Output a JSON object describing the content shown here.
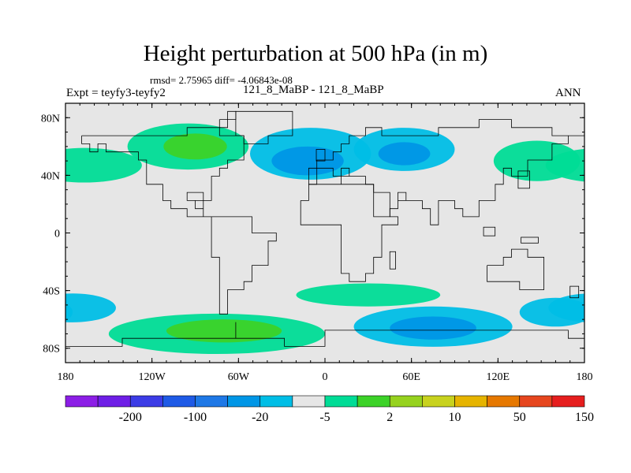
{
  "title": "Height perturbation at 500 hPa (in m)",
  "stats": "rmsd= 2.75965 diff= -4.06843e-08",
  "expt": "Expt = teyfy3-teyfy2",
  "case_id": "121_8_MaBP - 121_8_MaBP",
  "season": "ANN",
  "map": {
    "projection": "cylindrical-equidistant",
    "lon_range": [
      -180,
      180
    ],
    "lat_range": [
      -90,
      90
    ],
    "x_ticks": [
      {
        "value": -180,
        "label": "180"
      },
      {
        "value": -120,
        "label": "120W"
      },
      {
        "value": -60,
        "label": "60W"
      },
      {
        "value": 0,
        "label": "0"
      },
      {
        "value": 60,
        "label": "60E"
      },
      {
        "value": 120,
        "label": "120E"
      },
      {
        "value": 180,
        "label": "180"
      }
    ],
    "y_ticks": [
      {
        "value": 80,
        "label": "80N"
      },
      {
        "value": 40,
        "label": "40N"
      },
      {
        "value": 0,
        "label": "0"
      },
      {
        "value": -40,
        "label": "40S"
      },
      {
        "value": -80,
        "label": "80S"
      }
    ],
    "background_color": "#e6e6e6",
    "anomaly_blobs": [
      {
        "name": "n-atlantic-positive",
        "lon": -167,
        "lat": 47,
        "rlon": 40,
        "rlat": 12,
        "color": "#00dc96"
      },
      {
        "name": "n-pacific-positive",
        "lon": -95,
        "lat": 60,
        "rlon": 42,
        "rlat": 16,
        "color": "#00dc96"
      },
      {
        "name": "n-pacific-core",
        "lon": -90,
        "lat": 60,
        "rlon": 22,
        "rlat": 9,
        "color": "#3cd228"
      },
      {
        "name": "n-america-negative",
        "lon": -10,
        "lat": 55,
        "rlon": 42,
        "rlat": 18,
        "color": "#00bee6"
      },
      {
        "name": "n-america-core",
        "lon": -12,
        "lat": 50,
        "rlon": 25,
        "rlat": 10,
        "color": "#0096e6"
      },
      {
        "name": "eurasia-negative",
        "lon": 55,
        "lat": 58,
        "rlon": 35,
        "rlat": 15,
        "color": "#00bee6"
      },
      {
        "name": "eurasia-core",
        "lon": 55,
        "lat": 55,
        "rlon": 18,
        "rlat": 8,
        "color": "#0096e6"
      },
      {
        "name": "n-siberia-positive",
        "lon": 147,
        "lat": 50,
        "rlon": 30,
        "rlat": 14,
        "color": "#00dc96"
      },
      {
        "name": "s-pacific-negative",
        "lon": -175,
        "lat": -52,
        "rlon": 30,
        "rlat": 10,
        "color": "#00bee6"
      },
      {
        "name": "s-pacific-positive",
        "lon": -75,
        "lat": -70,
        "rlon": 75,
        "rlat": 14,
        "color": "#00dc96"
      },
      {
        "name": "s-pacific-core",
        "lon": -70,
        "lat": -68,
        "rlon": 40,
        "rlat": 8,
        "color": "#3cd228"
      },
      {
        "name": "s-atlantic-positive",
        "lon": 30,
        "lat": -43,
        "rlon": 50,
        "rlat": 8,
        "color": "#00dc96"
      },
      {
        "name": "s-indian-negative",
        "lon": 75,
        "lat": -65,
        "rlon": 55,
        "rlat": 14,
        "color": "#00bee6"
      },
      {
        "name": "s-indian-core",
        "lon": 75,
        "lat": -66,
        "rlon": 30,
        "rlat": 8,
        "color": "#0096e6"
      },
      {
        "name": "s-ocean-east-negative",
        "lon": 160,
        "lat": -55,
        "rlon": 25,
        "rlat": 10,
        "color": "#00bee6"
      }
    ],
    "coastlines": [
      {
        "name": "north-america",
        "points": [
          [
            -168,
            66
          ],
          [
            -158,
            70
          ],
          [
            -140,
            70
          ],
          [
            -128,
            70
          ],
          [
            -115,
            68
          ],
          [
            -96,
            72
          ],
          [
            -80,
            73
          ],
          [
            -68,
            82
          ],
          [
            -60,
            82
          ],
          [
            -62,
            66
          ],
          [
            -55,
            52
          ],
          [
            -65,
            45
          ],
          [
            -75,
            38
          ],
          [
            -81,
            30
          ],
          [
            -80,
            25
          ],
          [
            -85,
            30
          ],
          [
            -90,
            29
          ],
          [
            -97,
            26
          ],
          [
            -97,
            20
          ],
          [
            -92,
            18
          ],
          [
            -87,
            21
          ],
          [
            -88,
            15
          ],
          [
            -82,
            9
          ],
          [
            -79,
            9
          ],
          [
            -85,
            11
          ],
          [
            -93,
            16
          ],
          [
            -105,
            20
          ],
          [
            -110,
            24
          ],
          [
            -115,
            31
          ],
          [
            -122,
            37
          ],
          [
            -124,
            42
          ],
          [
            -124,
            48
          ],
          [
            -132,
            55
          ],
          [
            -150,
            60
          ],
          [
            -160,
            58
          ],
          [
            -165,
            62
          ],
          [
            -168,
            66
          ]
        ]
      },
      {
        "name": "south-america",
        "points": [
          [
            -80,
            9
          ],
          [
            -75,
            11
          ],
          [
            -65,
            11
          ],
          [
            -52,
            5
          ],
          [
            -50,
            0
          ],
          [
            -44,
            -2
          ],
          [
            -35,
            -6
          ],
          [
            -38,
            -13
          ],
          [
            -41,
            -22
          ],
          [
            -48,
            -26
          ],
          [
            -53,
            -34
          ],
          [
            -58,
            -38
          ],
          [
            -65,
            -42
          ],
          [
            -67,
            -50
          ],
          [
            -69,
            -55
          ],
          [
            -75,
            -50
          ],
          [
            -74,
            -42
          ],
          [
            -72,
            -30
          ],
          [
            -71,
            -18
          ],
          [
            -76,
            -12
          ],
          [
            -81,
            -5
          ],
          [
            -80,
            1
          ],
          [
            -78,
            6
          ],
          [
            -80,
            9
          ]
        ]
      },
      {
        "name": "greenland",
        "points": [
          [
            -72,
            78
          ],
          [
            -60,
            82
          ],
          [
            -30,
            83
          ],
          [
            -20,
            80
          ],
          [
            -20,
            70
          ],
          [
            -40,
            62
          ],
          [
            -50,
            62
          ],
          [
            -55,
            70
          ],
          [
            -72,
            78
          ]
        ]
      },
      {
        "name": "eurasia",
        "points": [
          [
            -10,
            36
          ],
          [
            -9,
            43
          ],
          [
            -2,
            44
          ],
          [
            -4,
            48
          ],
          [
            5,
            52
          ],
          [
            8,
            57
          ],
          [
            10,
            63
          ],
          [
            18,
            70
          ],
          [
            30,
            71
          ],
          [
            40,
            67
          ],
          [
            60,
            70
          ],
          [
            80,
            73
          ],
          [
            105,
            77
          ],
          [
            130,
            72
          ],
          [
            150,
            71
          ],
          [
            160,
            69
          ],
          [
            175,
            68
          ],
          [
            180,
            66
          ],
          [
            170,
            60
          ],
          [
            160,
            56
          ],
          [
            155,
            52
          ],
          [
            142,
            48
          ],
          [
            140,
            42
          ],
          [
            130,
            43
          ],
          [
            125,
            39
          ],
          [
            122,
            31
          ],
          [
            117,
            24
          ],
          [
            108,
            21
          ],
          [
            105,
            10
          ],
          [
            100,
            14
          ],
          [
            97,
            16
          ],
          [
            92,
            22
          ],
          [
            88,
            22
          ],
          [
            80,
            15
          ],
          [
            77,
            8
          ],
          [
            73,
            18
          ],
          [
            66,
            25
          ],
          [
            57,
            25
          ],
          [
            48,
            30
          ],
          [
            50,
            26
          ],
          [
            56,
            22
          ],
          [
            52,
            15
          ],
          [
            44,
            12
          ],
          [
            43,
            14
          ],
          [
            35,
            28
          ],
          [
            35,
            36
          ],
          [
            27,
            37
          ],
          [
            26,
            41
          ],
          [
            20,
            40
          ],
          [
            12,
            44
          ],
          [
            16,
            38
          ],
          [
            8,
            44
          ],
          [
            3,
            43
          ],
          [
            -3,
            36
          ],
          [
            -10,
            36
          ]
        ]
      },
      {
        "name": "africa",
        "points": [
          [
            -17,
            21
          ],
          [
            -13,
            28
          ],
          [
            -9,
            32
          ],
          [
            -5,
            36
          ],
          [
            10,
            37
          ],
          [
            11,
            33
          ],
          [
            20,
            31
          ],
          [
            30,
            31
          ],
          [
            33,
            27
          ],
          [
            43,
            12
          ],
          [
            51,
            12
          ],
          [
            50,
            5
          ],
          [
            40,
            -5
          ],
          [
            40,
            -15
          ],
          [
            35,
            -24
          ],
          [
            32,
            -28
          ],
          [
            27,
            -34
          ],
          [
            20,
            -35
          ],
          [
            18,
            -30
          ],
          [
            15,
            -27
          ],
          [
            12,
            -17
          ],
          [
            13,
            -6
          ],
          [
            9,
            -1
          ],
          [
            9,
            4
          ],
          [
            4,
            6
          ],
          [
            -8,
            4
          ],
          [
            -13,
            8
          ],
          [
            -17,
            14
          ],
          [
            -17,
            21
          ]
        ]
      },
      {
        "name": "australia",
        "points": [
          [
            114,
            -22
          ],
          [
            122,
            -18
          ],
          [
            130,
            -12
          ],
          [
            137,
            -12
          ],
          [
            140,
            -17
          ],
          [
            145,
            -15
          ],
          [
            153,
            -26
          ],
          [
            150,
            -37
          ],
          [
            140,
            -38
          ],
          [
            135,
            -35
          ],
          [
            128,
            -32
          ],
          [
            116,
            -35
          ],
          [
            114,
            -22
          ]
        ]
      },
      {
        "name": "antarctica",
        "points": [
          [
            -180,
            -80
          ],
          [
            -160,
            -78
          ],
          [
            -140,
            -75
          ],
          [
            -100,
            -72
          ],
          [
            -75,
            -72
          ],
          [
            -60,
            -64
          ],
          [
            -60,
            -74
          ],
          [
            -30,
            -77
          ],
          [
            0,
            -70
          ],
          [
            30,
            -69
          ],
          [
            60,
            -67
          ],
          [
            90,
            -66
          ],
          [
            120,
            -66
          ],
          [
            150,
            -68
          ],
          [
            170,
            -72
          ],
          [
            180,
            -80
          ]
        ]
      }
    ],
    "islands": [
      {
        "name": "japan",
        "lon": 138,
        "lat": 37,
        "rlon": 4,
        "rlat": 6
      },
      {
        "name": "madagascar",
        "lon": 47,
        "lat": -19,
        "rlon": 2,
        "rlat": 6
      },
      {
        "name": "new-zealand",
        "lon": 173,
        "lat": -41,
        "rlon": 3,
        "rlat": 4
      },
      {
        "name": "uk",
        "lon": -3,
        "lat": 54,
        "rlon": 3,
        "rlat": 4
      },
      {
        "name": "borneo",
        "lon": 114,
        "lat": 1,
        "rlon": 4,
        "rlat": 3
      },
      {
        "name": "new-guinea",
        "lon": 142,
        "lat": -5,
        "rlon": 6,
        "rlat": 2
      }
    ]
  },
  "colorbar": {
    "colors": [
      "#8c1ee6",
      "#6e1ee6",
      "#3c3ce6",
      "#1e5ae6",
      "#1e78e6",
      "#0096e6",
      "#00bee6",
      "#e6e6e6",
      "#00dc96",
      "#3cd228",
      "#96d21e",
      "#c8d21e",
      "#e6b400",
      "#e67800",
      "#e6461e",
      "#e61e1e"
    ],
    "labels": [
      "-200",
      "-100",
      "-20",
      "-5",
      "2",
      "10",
      "50",
      "150"
    ]
  }
}
